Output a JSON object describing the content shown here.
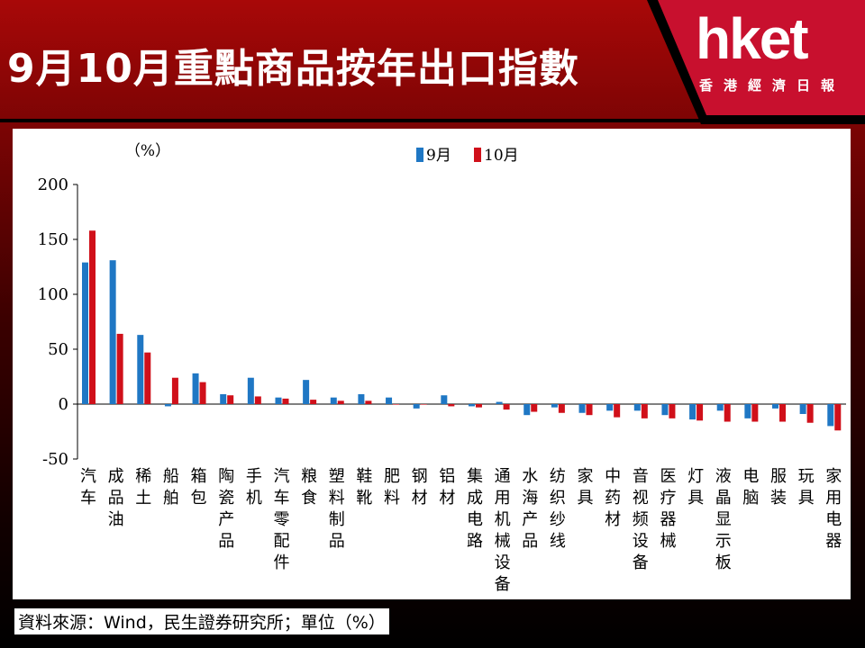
{
  "header": {
    "title": "9月10月重點商品按年出口指數"
  },
  "logo": {
    "brand": "hket",
    "subtitle": "香港經濟日報",
    "red": "#c8102e"
  },
  "source": {
    "text": "資料來源：Wind，民生證券研究所；單位（%）"
  },
  "chart_data": {
    "type": "bar",
    "unit_label": "（%）",
    "ylim": [
      -50,
      200
    ],
    "yticks": [
      200,
      150,
      100,
      50,
      0,
      -50
    ],
    "legend_position": "top-center",
    "series": [
      {
        "name": "9月",
        "color": "#1f77c4",
        "values": [
          129,
          131,
          63,
          -2,
          28,
          9,
          24,
          6,
          22,
          6,
          9,
          6,
          -4,
          8,
          -2,
          2,
          -10,
          -3,
          -8,
          -6,
          -6,
          -10,
          -14,
          -6,
          -13,
          -4,
          -9,
          -20
        ]
      },
      {
        "name": "10月",
        "color": "#d0101a",
        "values": [
          158,
          64,
          47,
          24,
          20,
          8,
          7,
          5,
          4,
          3,
          3,
          0,
          0,
          -2,
          -3,
          -5,
          -7,
          -8,
          -10,
          -12,
          -13,
          -13,
          -15,
          -16,
          -16,
          -16,
          -17,
          -24
        ]
      }
    ],
    "categories": [
      "汽车",
      "成品油",
      "稀土",
      "船舶",
      "箱包",
      "陶瓷产品",
      "手机",
      "汽车零配件",
      "粮食",
      "塑料制品",
      "鞋靴",
      "肥料",
      "钢材",
      "铝材",
      "集成电路",
      "通用机械设备",
      "水海产品",
      "纺织纱线",
      "家具",
      "中药材",
      "音视频设备",
      "医疗器械",
      "灯具",
      "液晶显示板",
      "电脑",
      "服装",
      "玩具",
      "家用电器"
    ]
  }
}
